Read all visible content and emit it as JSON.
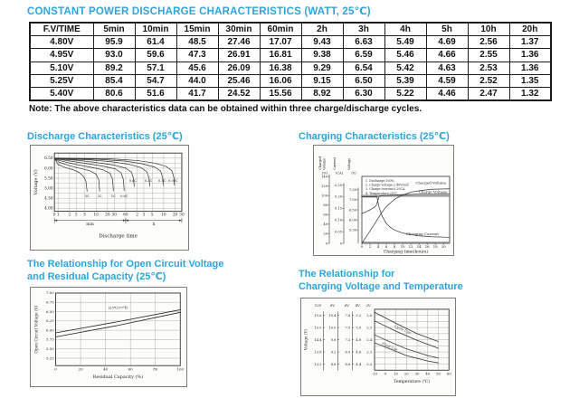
{
  "page": {
    "title": "CONSTANT POWER DISCHARGE CHARACTERISTICS (WATT, 25℃)",
    "note": "Note: The above characteristics data can be obtained within three charge/discharge cycles.",
    "accent_color": "#2da4da"
  },
  "table": {
    "headers": [
      "F.V/TIME",
      "5min",
      "10min",
      "15min",
      "30min",
      "60min",
      "2h",
      "3h",
      "4h",
      "5h",
      "10h",
      "20h"
    ],
    "rows": [
      {
        "label": "4.80V",
        "values": [
          "95.9",
          "61.4",
          "48.5",
          "27.46",
          "17.07",
          "9.43",
          "6.63",
          "5.49",
          "4.69",
          "2.56",
          "1.37"
        ]
      },
      {
        "label": "4.95V",
        "values": [
          "93.0",
          "59.6",
          "47.3",
          "26.91",
          "16.81",
          "9.38",
          "6.59",
          "5.46",
          "4.66",
          "2.55",
          "1.36"
        ]
      },
      {
        "label": "5.10V",
        "values": [
          "89.2",
          "57.1",
          "45.6",
          "26.09",
          "16.38",
          "9.29",
          "6.54",
          "5.42",
          "4.63",
          "2.53",
          "1.36"
        ]
      },
      {
        "label": "5.25V",
        "values": [
          "85.4",
          "54.7",
          "44.0",
          "25.46",
          "16.06",
          "9.15",
          "6.50",
          "5.39",
          "4.59",
          "2.52",
          "1.35"
        ]
      },
      {
        "label": "5.40V",
        "values": [
          "80.6",
          "51.6",
          "41.7",
          "24.52",
          "15.56",
          "8.92",
          "6.30",
          "5.22",
          "4.46",
          "2.47",
          "1.32"
        ]
      }
    ]
  },
  "chart_data": [
    {
      "id": "discharge",
      "type": "line",
      "title": "Discharge Characteristics (25℃)",
      "ylabel": "Voltage (V)",
      "xlabel": "Discharge time",
      "x_origin_label": "0",
      "x_scale": "log, 1 min to 30 h",
      "ylim": [
        3.85,
        6.75
      ],
      "yticks": [
        "6.50",
        "6.00",
        "5.50",
        "5.00",
        "4.50",
        "4.00"
      ],
      "x_sections": [
        {
          "label": "min",
          "ticks": [
            1,
            2,
            3,
            5,
            10,
            20,
            30,
            60
          ]
        },
        {
          "label": "h",
          "ticks": [
            2,
            3,
            5,
            10,
            20,
            30
          ]
        }
      ],
      "series": [
        {
          "name": "3C",
          "points_min_volt": [
            [
              0.82,
              6.45
            ],
            [
              1,
              6.18
            ],
            [
              1.6,
              6.02
            ],
            [
              2.5,
              5.92
            ],
            [
              3.6,
              5.78
            ],
            [
              4.6,
              5.6
            ],
            [
              5.4,
              5.35
            ],
            [
              5.8,
              4.85
            ]
          ]
        },
        {
          "name": "2C",
          "points_min_volt": [
            [
              0.82,
              6.45
            ],
            [
              1.1,
              6.28
            ],
            [
              2,
              6.12
            ],
            [
              4,
              5.98
            ],
            [
              7,
              5.86
            ],
            [
              10,
              5.7
            ],
            [
              11.8,
              5.4
            ],
            [
              12.4,
              4.85
            ]
          ]
        },
        {
          "name": "1C",
          "points_min_volt": [
            [
              0.82,
              6.46
            ],
            [
              1.3,
              6.34
            ],
            [
              3,
              6.18
            ],
            [
              7,
              6.05
            ],
            [
              15,
              5.92
            ],
            [
              23,
              5.75
            ],
            [
              27,
              5.45
            ],
            [
              28.5,
              4.87
            ]
          ]
        },
        {
          "name": "0.6C",
          "points_min_volt": [
            [
              0.82,
              6.47
            ],
            [
              2,
              6.36
            ],
            [
              6,
              6.22
            ],
            [
              15,
              6.1
            ],
            [
              32,
              5.96
            ],
            [
              45,
              5.78
            ],
            [
              52,
              5.45
            ],
            [
              55,
              4.88
            ]
          ]
        },
        {
          "name": "0.4C",
          "points_min_volt": [
            [
              0.82,
              6.47
            ],
            [
              3,
              6.4
            ],
            [
              10,
              6.28
            ],
            [
              30,
              6.15
            ],
            [
              60,
              6.0
            ],
            [
              85,
              5.8
            ],
            [
              96,
              5.5
            ],
            [
              101,
              5.08
            ]
          ]
        },
        {
          "name": "0.2C",
          "points_min_volt": [
            [
              0.82,
              6.48
            ],
            [
              6,
              6.42
            ],
            [
              25,
              6.32
            ],
            [
              70,
              6.2
            ],
            [
              150,
              6.03
            ],
            [
              215,
              5.82
            ],
            [
              248,
              5.5
            ],
            [
              258,
              5.1
            ]
          ]
        },
        {
          "name": "0.1C",
          "points_min_volt": [
            [
              0.82,
              6.49
            ],
            [
              12,
              6.44
            ],
            [
              60,
              6.35
            ],
            [
              160,
              6.22
            ],
            [
              350,
              6.05
            ],
            [
              500,
              5.85
            ],
            [
              570,
              5.5
            ],
            [
              595,
              5.12
            ]
          ]
        },
        {
          "name": "0.05C",
          "points_min_volt": [
            [
              0.82,
              6.5
            ],
            [
              25,
              6.46
            ],
            [
              120,
              6.38
            ],
            [
              350,
              6.25
            ],
            [
              700,
              6.08
            ],
            [
              980,
              5.88
            ],
            [
              1110,
              5.55
            ],
            [
              1160,
              5.15
            ]
          ]
        }
      ]
    },
    {
      "id": "charging",
      "type": "line",
      "title": "Charging Characteristics (25℃)",
      "xlabel": "Charging time(hours)",
      "xticks": [
        "0",
        "2",
        "4",
        "6",
        "8",
        "10",
        "12",
        "14",
        "16",
        "18",
        "20"
      ],
      "axes": [
        {
          "title": "Charged Volume",
          "unit": "(%)",
          "ticks": [
            "0",
            "20",
            "40",
            "60",
            "80",
            "100",
            "120",
            "140"
          ]
        },
        {
          "title": "Current",
          "unit": "(CA)",
          "ticks": [
            "0",
            "0.05",
            "0.10",
            "0.15",
            "0.20",
            "0.25"
          ]
        },
        {
          "title": "Voltage",
          "unit": "(V)",
          "ticks": [
            "5.50",
            "6.00",
            "6.50",
            "7.00",
            "7.50"
          ]
        }
      ],
      "legend": [
        "1. Discharge:100%",
        "2. Charge voltage:2.40V/cell",
        "3. Charge current:0.20CA",
        "4. Temperature:25℃"
      ],
      "series": [
        {
          "name": "Charged Volume",
          "axis": "%",
          "points": [
            [
              0,
              0
            ],
            [
              1,
              13
            ],
            [
              2,
              26
            ],
            [
              3,
              39
            ],
            [
              3.8,
              50
            ],
            [
              5,
              66
            ],
            [
              6,
              77
            ],
            [
              8,
              92
            ],
            [
              10,
              101
            ],
            [
              12,
              107
            ],
            [
              14,
              110
            ],
            [
              17,
              113
            ],
            [
              21.5,
              114
            ]
          ]
        },
        {
          "name": "Charge Voltage",
          "axis": "V",
          "points": [
            [
              0,
              6.32
            ],
            [
              1,
              6.4
            ],
            [
              2,
              6.5
            ],
            [
              3,
              6.62
            ],
            [
              3.5,
              6.72
            ],
            [
              3.9,
              6.95
            ],
            [
              4.2,
              7.15
            ],
            [
              4.6,
              7.2
            ],
            [
              6,
              7.22
            ],
            [
              10,
              7.26
            ],
            [
              15,
              7.29
            ],
            [
              21.5,
              7.3
            ]
          ]
        },
        {
          "name": "Charging Current",
          "axis": "CA",
          "points": [
            [
              0,
              0.2
            ],
            [
              3.7,
              0.2
            ],
            [
              4.2,
              0.155
            ],
            [
              5,
              0.115
            ],
            [
              6,
              0.085
            ],
            [
              7,
              0.068
            ],
            [
              8,
              0.057
            ],
            [
              10,
              0.044
            ],
            [
              12,
              0.037
            ],
            [
              14,
              0.032
            ],
            [
              17,
              0.028
            ],
            [
              21.5,
              0.026
            ]
          ]
        }
      ],
      "constant_current_segment": {
        "value_ca": 0.2,
        "from_h": 0,
        "to_h": 3.7
      },
      "charge_voltage_reference": 7.2
    },
    {
      "id": "ocv-residual",
      "type": "line",
      "title_lines": [
        "The Relationship for Open Circuit Voltage",
        "and Residual Capacity (25℃)"
      ],
      "ylabel": "Open Circuit Voltage (V)",
      "xlabel": "Residual Capacity (%)",
      "annotation": "(25℃/77℉)",
      "yticks": [
        "7.00",
        "6.75",
        "6.50",
        "6.25",
        "6.00",
        "5.75",
        "5.50",
        "5.25"
      ],
      "xticks": [
        "0",
        "20",
        "40",
        "60",
        "80",
        "100"
      ],
      "series": [
        {
          "name": "upper",
          "points": [
            [
              0,
              5.93
            ],
            [
              50,
              6.23
            ],
            [
              100,
              6.55
            ]
          ]
        },
        {
          "name": "lower",
          "points": [
            [
              0,
              5.82
            ],
            [
              50,
              6.13
            ],
            [
              100,
              6.48
            ]
          ]
        }
      ]
    },
    {
      "id": "charge-voltage-temp",
      "type": "line",
      "title_lines": [
        "The Relationship for",
        "Charging Voltage and Temperature"
      ],
      "ylabel": "Voltage (V)",
      "xlabel": "Temperature (℃)",
      "xticks": [
        "-10",
        "0",
        "10",
        "20",
        "30",
        "40",
        "50",
        "60"
      ],
      "scales": [
        {
          "name": "12V",
          "ticks": [
            "15.6",
            "15.0",
            "14.4",
            "13.8",
            "13.2"
          ]
        },
        {
          "name": "8V",
          "ticks": [
            "10.4",
            "10.0",
            "9.6",
            "9.2",
            "8.8"
          ]
        },
        {
          "name": "6V",
          "ticks": [
            "7.8",
            "7.5",
            "7.2",
            "6.9",
            "6.6"
          ]
        },
        {
          "name": "4V",
          "ticks": [
            "5.2",
            "5.0",
            "4.8",
            "4.6",
            "4.4"
          ]
        },
        {
          "name": "2V",
          "ticks": [
            "2.6",
            "2.5",
            "2.4",
            "2.3",
            "2.2"
          ]
        }
      ],
      "bands": [
        {
          "name": "Cycle Use",
          "upper_2v": [
            [
              -10,
              2.625
            ],
            [
              10,
              2.535
            ],
            [
              30,
              2.45
            ],
            [
              50,
              2.385
            ]
          ],
          "lower_2v": [
            [
              -10,
              2.555
            ],
            [
              10,
              2.47
            ],
            [
              30,
              2.395
            ],
            [
              50,
              2.33
            ]
          ]
        },
        {
          "name": "Float Use",
          "upper_2v": [
            [
              -10,
              2.44
            ],
            [
              0,
              2.4
            ],
            [
              20,
              2.325
            ],
            [
              40,
              2.27
            ],
            [
              50,
              2.25
            ]
          ],
          "lower_2v": [
            [
              -10,
              2.375
            ],
            [
              0,
              2.34
            ],
            [
              20,
              2.27
            ],
            [
              40,
              2.225
            ],
            [
              50,
              2.21
            ]
          ]
        }
      ]
    }
  ]
}
